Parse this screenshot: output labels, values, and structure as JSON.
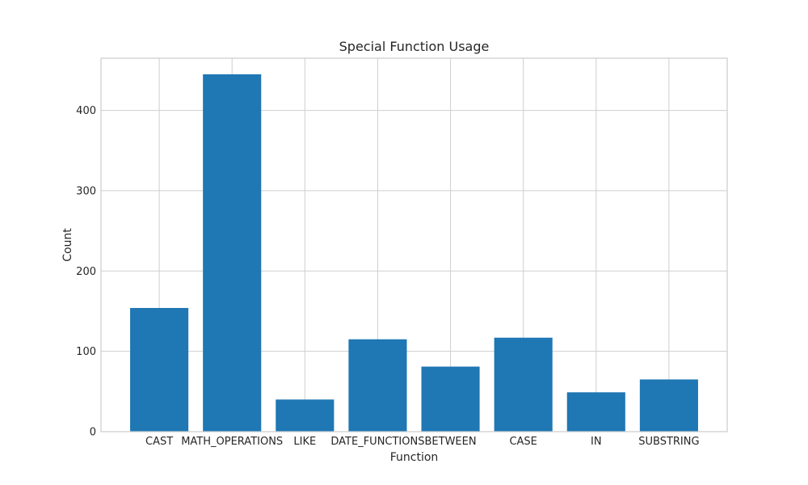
{
  "chart_data": {
    "type": "bar",
    "title": "Special Function Usage",
    "xlabel": "Function",
    "ylabel": "Count",
    "categories": [
      "CAST",
      "MATH_OPERATIONS",
      "LIKE",
      "DATE_FUNCTIONS",
      "BETWEEN",
      "CASE",
      "IN",
      "SUBSTRING"
    ],
    "values": [
      154,
      445,
      40,
      115,
      81,
      117,
      49,
      65
    ],
    "ylim": [
      0,
      465
    ],
    "yticks": [
      0,
      100,
      200,
      300,
      400
    ],
    "grid": true,
    "bar_color": "#1f77b4"
  }
}
